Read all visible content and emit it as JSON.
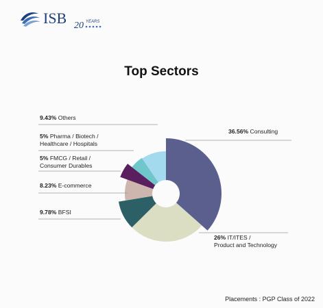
{
  "brand": {
    "logo_text": "ISB",
    "badge_number": "20",
    "badge_text": "YEARS"
  },
  "footer": "Placements : PGP Class of 2022",
  "colors": {
    "Consulting": "#5b5f8e",
    "IT": "#dcdec3",
    "BFSI": "#2d5f66",
    "Ecom": "#cdb6ad",
    "FMCG": "#5a1f5e",
    "Pharma": "#6fc6cb",
    "Others": "#a4daee"
  },
  "chart_data": {
    "type": "pie",
    "title": "Top Sectors",
    "slices": [
      {
        "key": "Consulting",
        "pct": "36.56%",
        "value": 36.56,
        "label_lines": [
          "Consulting"
        ]
      },
      {
        "key": "IT",
        "pct": "26%",
        "value": 26.0,
        "label_lines": [
          "IT/ITES /",
          "Product and Technology"
        ]
      },
      {
        "key": "BFSI",
        "pct": "9.78%",
        "value": 9.78,
        "label_lines": [
          "BFSI"
        ]
      },
      {
        "key": "Ecom",
        "pct": "8.23%",
        "value": 8.23,
        "label_lines": [
          "E-commerce"
        ]
      },
      {
        "key": "FMCG",
        "pct": "5%",
        "value": 5.0,
        "label_lines": [
          "FMCG / Retail /",
          "Consumer Durables"
        ]
      },
      {
        "key": "Pharma",
        "pct": "5%",
        "value": 5.0,
        "label_lines": [
          "Pharma / Biotech /",
          "Healthcare / Hospitals"
        ]
      },
      {
        "key": "Others",
        "pct": "9.43%",
        "value": 9.43,
        "label_lines": [
          "Others"
        ]
      }
    ]
  }
}
